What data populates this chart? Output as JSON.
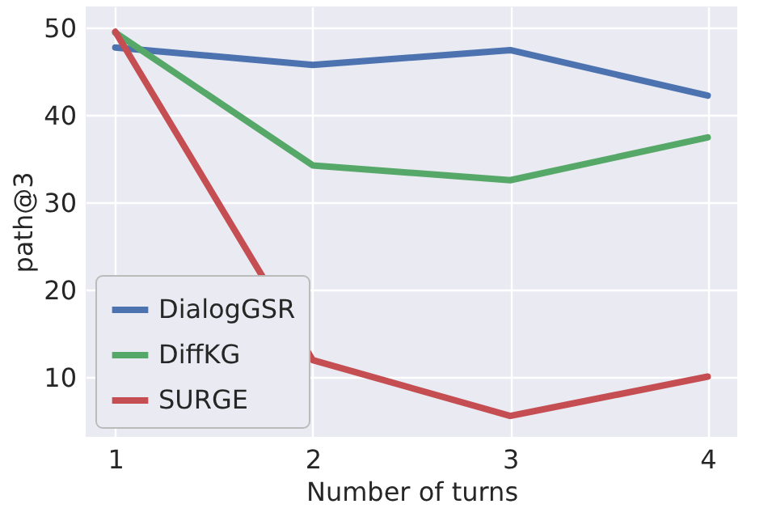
{
  "chart_data": {
    "type": "line",
    "xlabel": "Number of turns",
    "ylabel": "path@3",
    "x": [
      1,
      2,
      3,
      4
    ],
    "xlim": [
      0.85,
      4.15
    ],
    "xticks": [
      1,
      2,
      3,
      4
    ],
    "ylim": [
      3.2,
      52.5
    ],
    "yticks": [
      10,
      20,
      30,
      40,
      50
    ],
    "series": [
      {
        "name": "DialogGSR",
        "color": "#4c72b0",
        "values": [
          47.8,
          45.8,
          47.5,
          42.3
        ]
      },
      {
        "name": "DiffKG",
        "color": "#55a868",
        "values": [
          49.5,
          34.3,
          32.6,
          37.5
        ]
      },
      {
        "name": "SURGE",
        "color": "#c44e52",
        "values": [
          49.6,
          12,
          5.6,
          10.1
        ]
      }
    ],
    "grid": true,
    "legend": "bottom left",
    "marker": "none",
    "line_style": "solid"
  }
}
